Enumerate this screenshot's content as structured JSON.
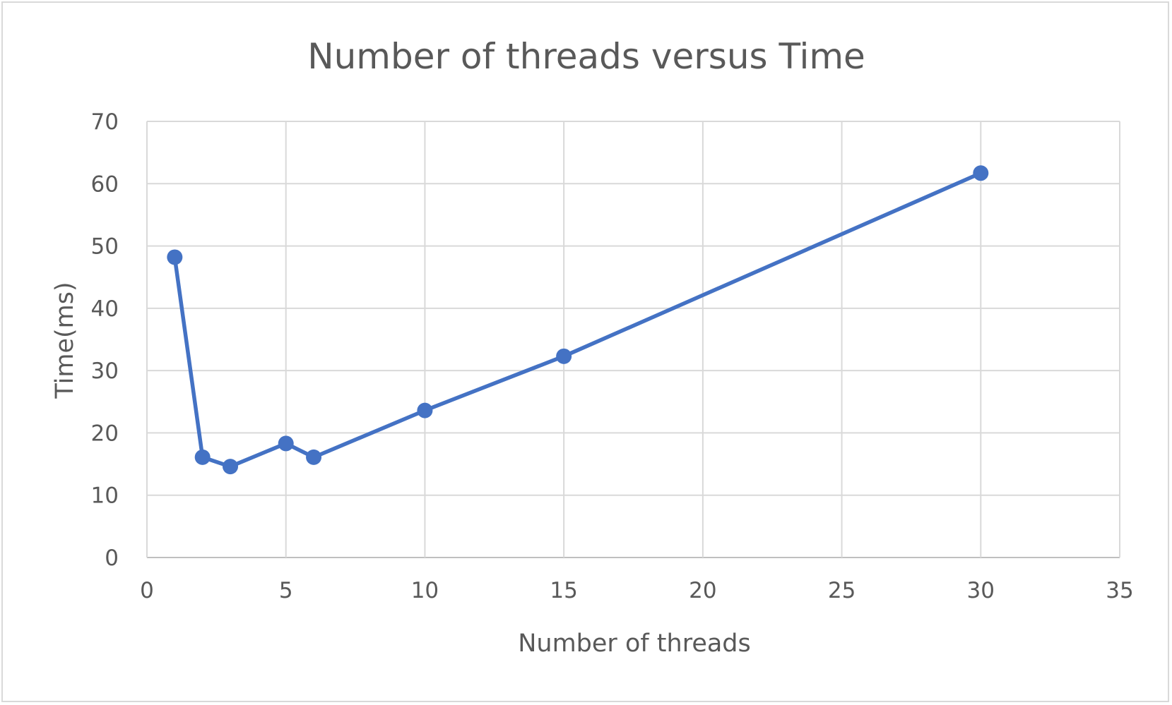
{
  "chart_data": {
    "type": "line",
    "title": "Number of threads versus Time",
    "xlabel": "Number of threads",
    "ylabel": "Time(ms)",
    "xlim": [
      0,
      35
    ],
    "ylim": [
      0,
      70
    ],
    "xticks": [
      0,
      5,
      10,
      15,
      20,
      25,
      30,
      35
    ],
    "yticks": [
      0,
      10,
      20,
      30,
      40,
      50,
      60,
      70
    ],
    "grid": true,
    "legend": "none",
    "series": [
      {
        "color": "#4472c4",
        "x": [
          1,
          2,
          3,
          5,
          6,
          10,
          15,
          30
        ],
        "y": [
          48.2,
          16.1,
          14.6,
          18.3,
          16.1,
          23.6,
          32.3,
          61.7
        ]
      }
    ]
  }
}
